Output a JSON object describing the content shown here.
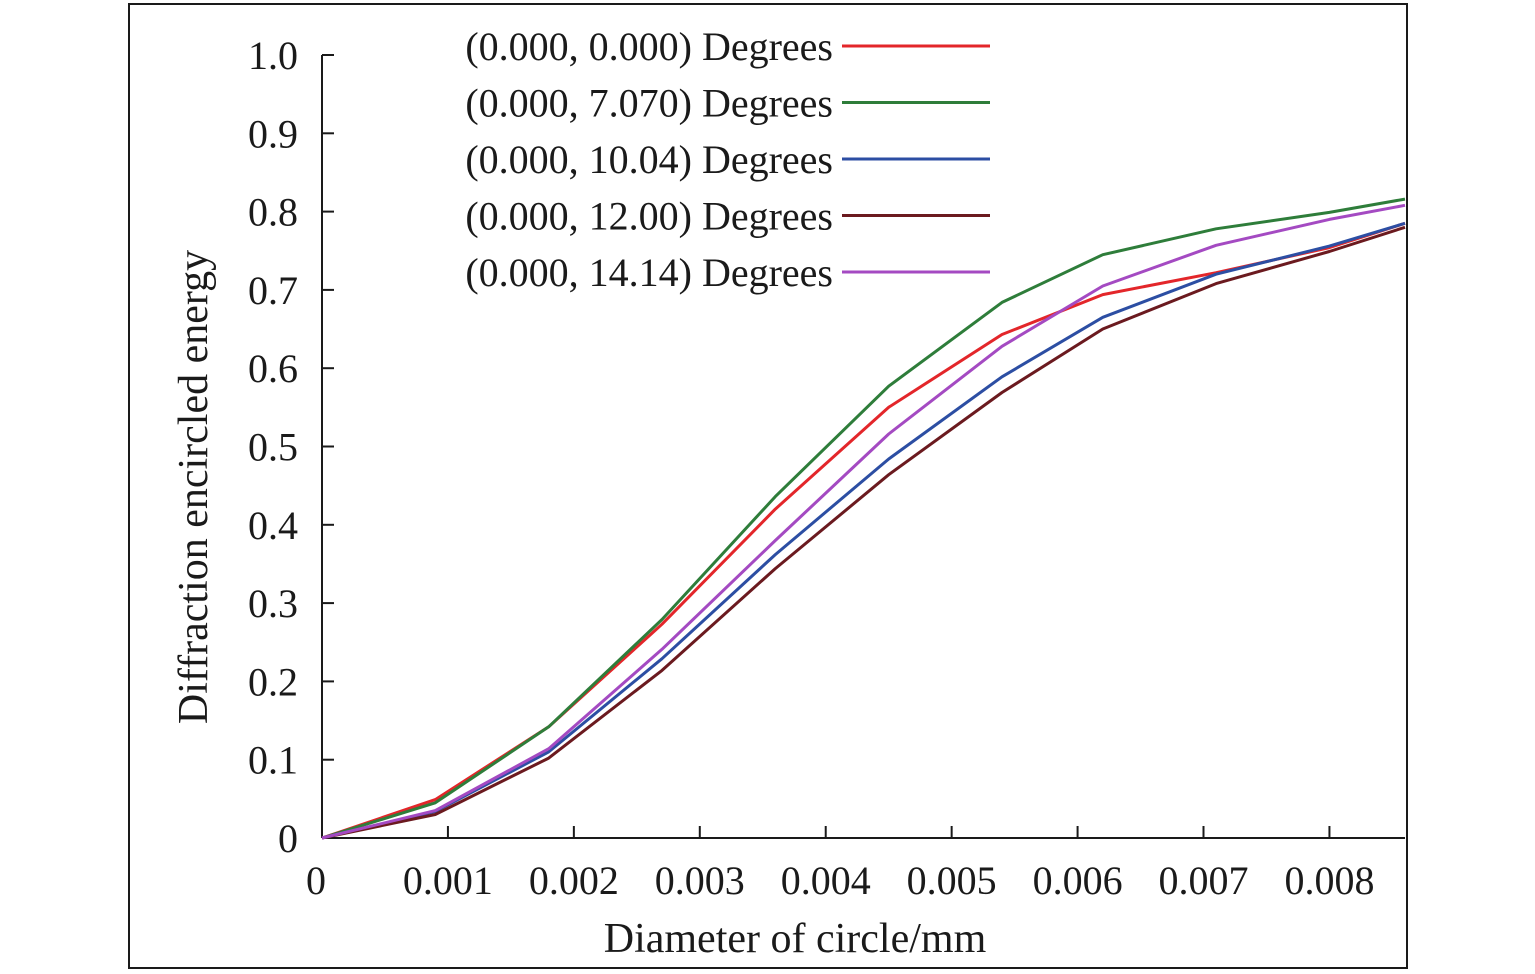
{
  "chart_data": {
    "type": "line",
    "xlabel": "Diameter of circle/mm",
    "ylabel": "Diffraction encircled energy",
    "xlim": [
      0,
      0.0086
    ],
    "ylim": [
      0,
      1.0
    ],
    "x_ticks": [
      {
        "value": 0,
        "label": "0"
      },
      {
        "value": 0.001,
        "label": "0.001"
      },
      {
        "value": 0.002,
        "label": "0.002"
      },
      {
        "value": 0.003,
        "label": "0.003"
      },
      {
        "value": 0.004,
        "label": "0.004"
      },
      {
        "value": 0.005,
        "label": "0.005"
      },
      {
        "value": 0.006,
        "label": "0.006"
      },
      {
        "value": 0.007,
        "label": "0.007"
      },
      {
        "value": 0.008,
        "label": "0.008"
      }
    ],
    "y_ticks": [
      {
        "value": 0,
        "label": "0"
      },
      {
        "value": 0.1,
        "label": "0.1"
      },
      {
        "value": 0.2,
        "label": "0.2"
      },
      {
        "value": 0.3,
        "label": "0.3"
      },
      {
        "value": 0.4,
        "label": "0.4"
      },
      {
        "value": 0.5,
        "label": "0.5"
      },
      {
        "value": 0.6,
        "label": "0.6"
      },
      {
        "value": 0.7,
        "label": "0.7"
      },
      {
        "value": 0.8,
        "label": "0.8"
      },
      {
        "value": 0.9,
        "label": "0.9"
      },
      {
        "value": 1.0,
        "label": "1.0"
      }
    ],
    "grid": false,
    "legend_position": "top-left",
    "x": [
      0,
      0.0009,
      0.0018,
      0.0027,
      0.0036,
      0.0045,
      0.0054,
      0.0062,
      0.0071,
      0.008,
      0.0086
    ],
    "series": [
      {
        "name": "(0.000, 0.000) Degrees",
        "color": "#e3262a",
        "values": [
          0,
          0.049,
          0.142,
          0.273,
          0.42,
          0.55,
          0.643,
          0.694,
          0.722,
          0.754,
          0.785
        ]
      },
      {
        "name": "(0.000, 7.070) Degrees",
        "color": "#2e7d3a",
        "values": [
          0,
          0.045,
          0.142,
          0.279,
          0.436,
          0.577,
          0.684,
          0.745,
          0.778,
          0.799,
          0.816
        ]
      },
      {
        "name": "(0.000, 10.04) Degrees",
        "color": "#2c4ea3",
        "values": [
          0,
          0.034,
          0.11,
          0.229,
          0.362,
          0.484,
          0.589,
          0.665,
          0.72,
          0.756,
          0.785
        ]
      },
      {
        "name": "(0.000, 12.00) Degrees",
        "color": "#6b1a1f",
        "values": [
          0,
          0.03,
          0.102,
          0.214,
          0.344,
          0.464,
          0.569,
          0.65,
          0.708,
          0.749,
          0.78
        ]
      },
      {
        "name": "(0.000, 14.14) Degrees",
        "color": "#a44ac2",
        "values": [
          0,
          0.035,
          0.114,
          0.241,
          0.38,
          0.516,
          0.628,
          0.705,
          0.757,
          0.79,
          0.808
        ]
      }
    ]
  }
}
